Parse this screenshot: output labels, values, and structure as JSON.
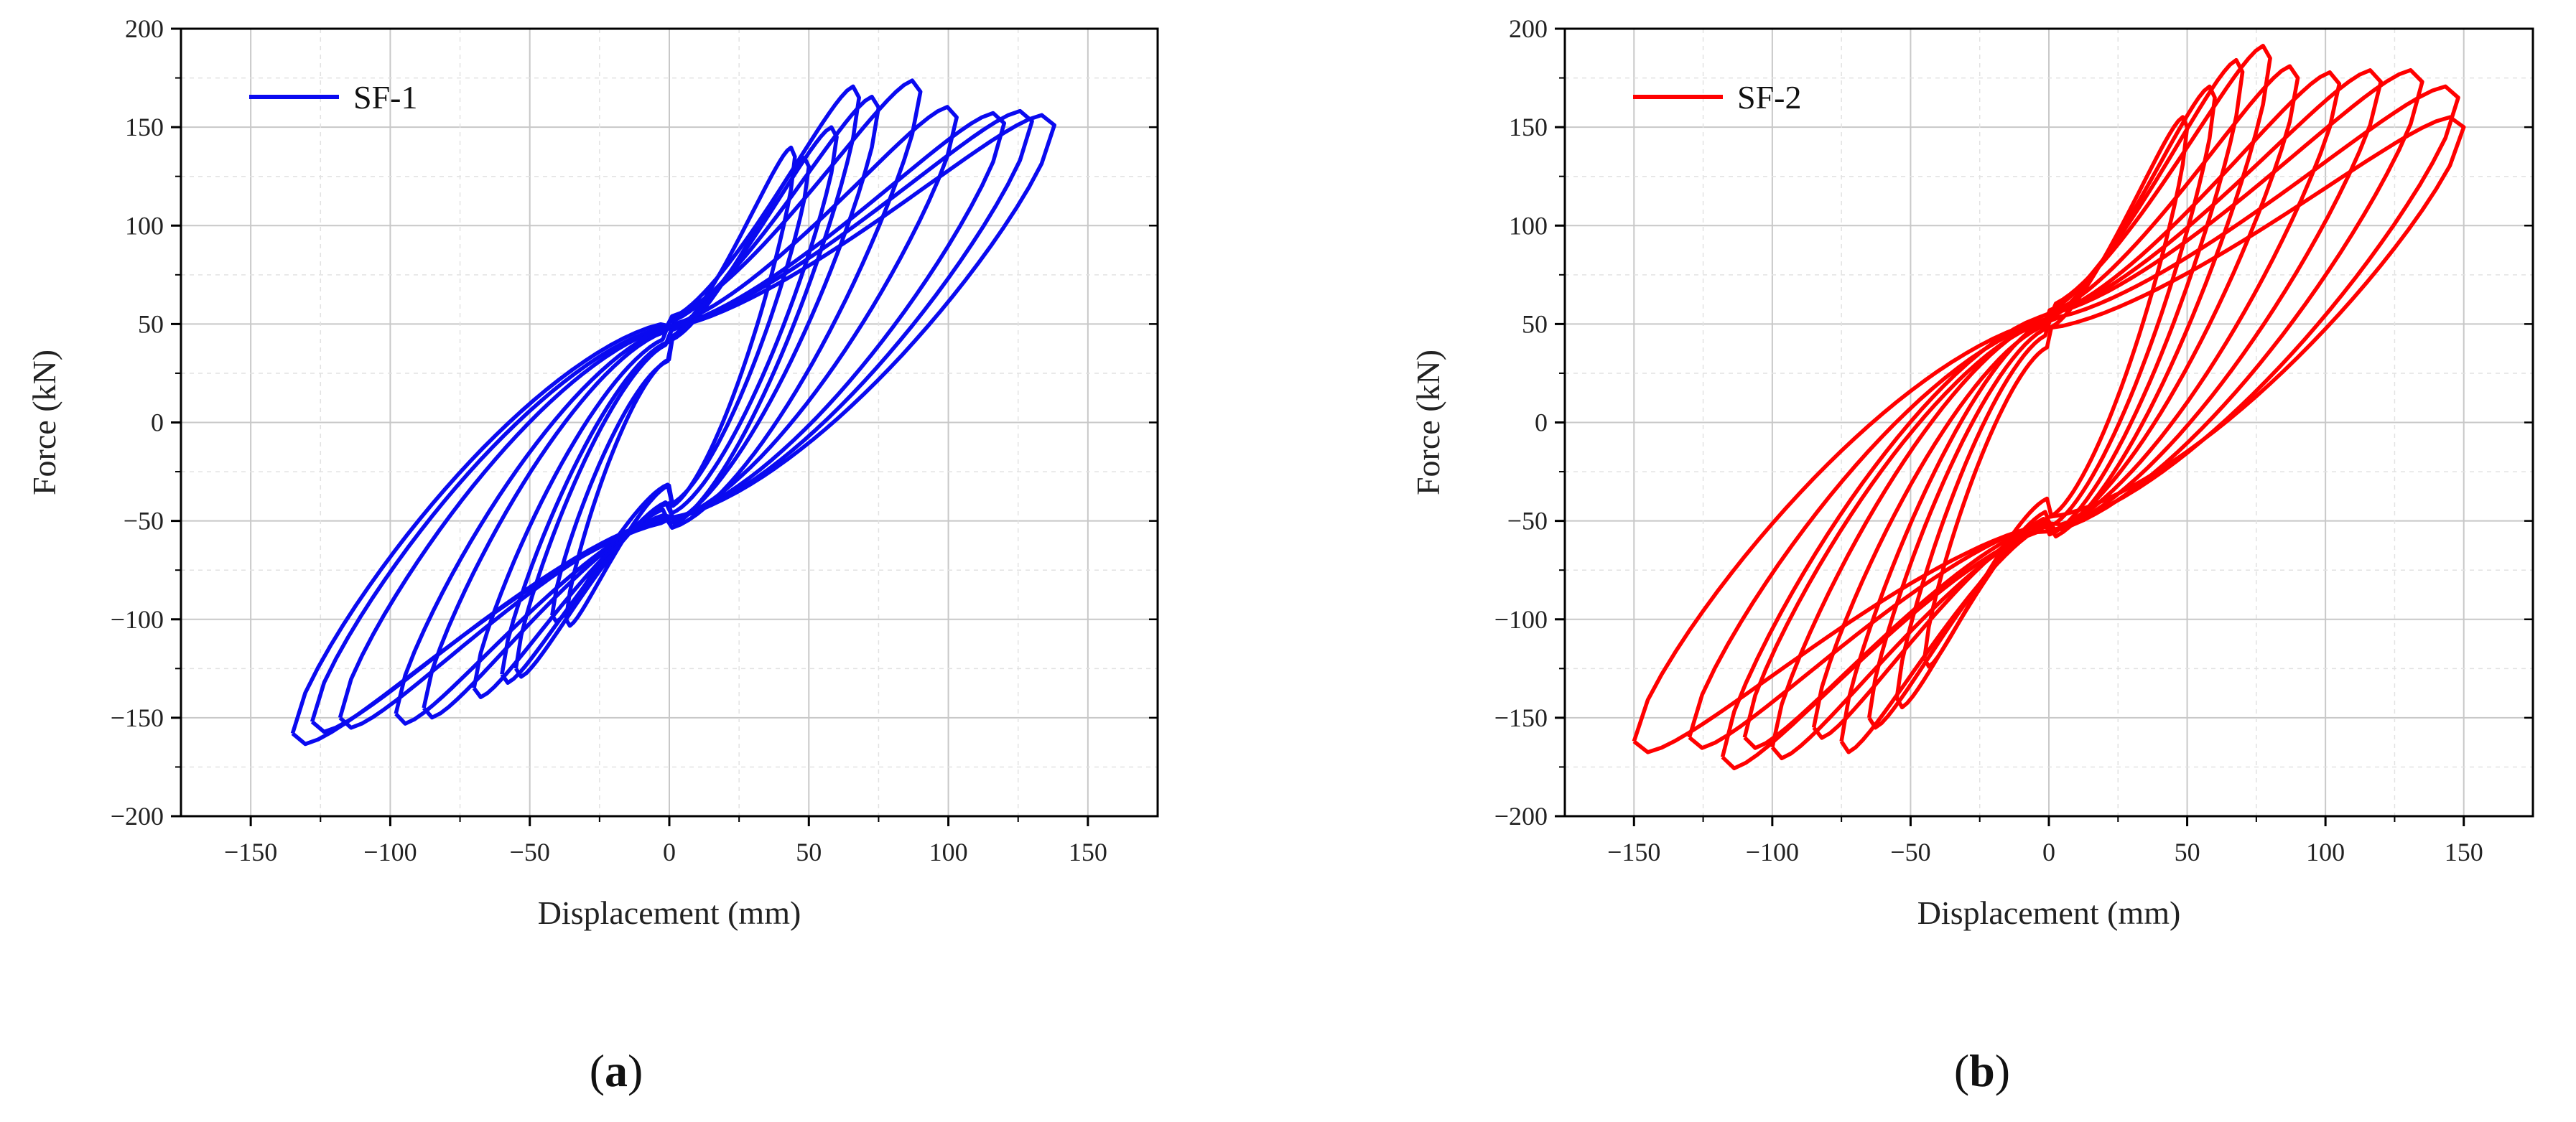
{
  "chart_data": [
    {
      "type": "line",
      "panel_label": "a",
      "xlabel": "Displacement (mm)",
      "ylabel": "Force (kN)",
      "xlim": [
        -175,
        175
      ],
      "ylim": [
        -200,
        200
      ],
      "xticks": [
        -150,
        -100,
        -50,
        0,
        50,
        100,
        150
      ],
      "yticks": [
        -200,
        -150,
        -100,
        -50,
        0,
        50,
        100,
        150,
        200
      ],
      "grid": true,
      "legend_position": "top-left",
      "series": [
        {
          "name": "SF-1",
          "color": "#0a0af0",
          "cycles": [
            {
              "amp_pos": 45,
              "f_pos": 135,
              "amp_neg": -37,
              "f_neg": -100
            },
            {
              "amp_pos": 50,
              "f_pos": 130,
              "amp_neg": -42,
              "f_neg": -98
            },
            {
              "amp_pos": 60,
              "f_pos": 145,
              "amp_neg": -55,
              "f_neg": -125
            },
            {
              "amp_pos": 68,
              "f_pos": 165,
              "amp_neg": -60,
              "f_neg": -128
            },
            {
              "amp_pos": 75,
              "f_pos": 160,
              "amp_neg": -70,
              "f_neg": -135
            },
            {
              "amp_pos": 90,
              "f_pos": 168,
              "amp_neg": -88,
              "f_neg": -145
            },
            {
              "amp_pos": 103,
              "f_pos": 155,
              "amp_neg": -98,
              "f_neg": -148
            },
            {
              "amp_pos": 120,
              "f_pos": 152,
              "amp_neg": -118,
              "f_neg": -150
            },
            {
              "amp_pos": 130,
              "f_pos": 153,
              "amp_neg": -128,
              "f_neg": -152
            },
            {
              "amp_pos": 138,
              "f_pos": 151,
              "amp_neg": -135,
              "f_neg": -158
            }
          ]
        }
      ]
    },
    {
      "type": "line",
      "panel_label": "b",
      "xlabel": "Displacement (mm)",
      "ylabel": "Force (kN)",
      "xlim": [
        -175,
        175
      ],
      "ylim": [
        -200,
        200
      ],
      "xticks": [
        -150,
        -100,
        -50,
        0,
        50,
        100,
        150
      ],
      "yticks": [
        -200,
        -150,
        -100,
        -50,
        0,
        50,
        100,
        150,
        200
      ],
      "grid": true,
      "legend_position": "top-left",
      "series": [
        {
          "name": "SF-2",
          "color": "#ff0000",
          "cycles": [
            {
              "amp_pos": 50,
              "f_pos": 150,
              "amp_neg": -45,
              "f_neg": -120
            },
            {
              "amp_pos": 60,
              "f_pos": 165,
              "amp_neg": -55,
              "f_neg": -140
            },
            {
              "amp_pos": 70,
              "f_pos": 178,
              "amp_neg": -65,
              "f_neg": -150
            },
            {
              "amp_pos": 80,
              "f_pos": 185,
              "amp_neg": -75,
              "f_neg": -162
            },
            {
              "amp_pos": 90,
              "f_pos": 175,
              "amp_neg": -85,
              "f_neg": -155
            },
            {
              "amp_pos": 105,
              "f_pos": 172,
              "amp_neg": -100,
              "f_neg": -165
            },
            {
              "amp_pos": 120,
              "f_pos": 173,
              "amp_neg": -110,
              "f_neg": -160
            },
            {
              "amp_pos": 135,
              "f_pos": 173,
              "amp_neg": -118,
              "f_neg": -170
            },
            {
              "amp_pos": 148,
              "f_pos": 165,
              "amp_neg": -130,
              "f_neg": -160
            },
            {
              "amp_pos": 150,
              "f_pos": 150,
              "amp_neg": -150,
              "f_neg": -162
            }
          ]
        }
      ]
    }
  ],
  "captions": {
    "a": "a",
    "b": "b"
  }
}
